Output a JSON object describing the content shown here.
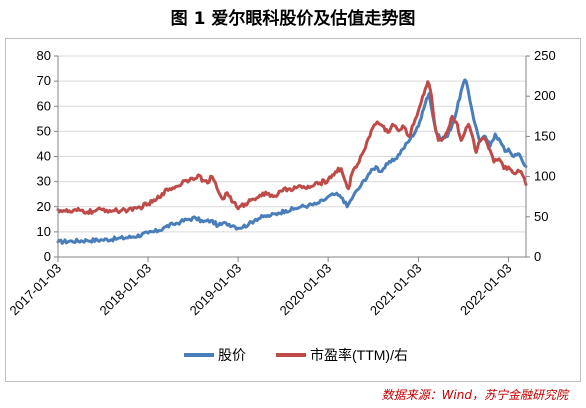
{
  "figure": {
    "title": "图 1  爱尔眼科股价及估值走势图",
    "source": "数据来源：Wind，苏宁金融研究院"
  },
  "colors": {
    "price": "#4a7ebb",
    "pe": "#be4b48",
    "axis": "#868686",
    "grid": "#d9d9d9"
  },
  "chart_data": {
    "type": "line",
    "title": "",
    "xlabel": "",
    "ylabel": "",
    "y2label": "",
    "x_ticks": [
      "2017-01-03",
      "2018-01-03",
      "2019-01-03",
      "2020-01-03",
      "2021-01-03",
      "2022-01-03"
    ],
    "x_range": [
      "2017-01-03",
      "2022-03-15"
    ],
    "y_ticks": [
      0,
      10,
      20,
      30,
      40,
      50,
      60,
      70,
      80
    ],
    "y2_ticks": [
      0,
      50,
      100,
      150,
      200,
      250
    ],
    "ylim": [
      0,
      80
    ],
    "y2lim": [
      0,
      250
    ],
    "grid": "horizontal",
    "legend_position": "bottom",
    "series": [
      {
        "name": "股价",
        "axis": "left",
        "points": [
          [
            "2017-01-03",
            6.0
          ],
          [
            "2017-03-01",
            6.3
          ],
          [
            "2017-05-01",
            6.6
          ],
          [
            "2017-07-01",
            6.8
          ],
          [
            "2017-09-01",
            7.3
          ],
          [
            "2017-11-01",
            8.0
          ],
          [
            "2018-01-03",
            9.5
          ],
          [
            "2018-02-15",
            10.5
          ],
          [
            "2018-03-15",
            12.0
          ],
          [
            "2018-04-15",
            13.0
          ],
          [
            "2018-05-15",
            14.0
          ],
          [
            "2018-06-15",
            15.0
          ],
          [
            "2018-07-15",
            15.5
          ],
          [
            "2018-08-15",
            14.0
          ],
          [
            "2018-09-15",
            14.5
          ],
          [
            "2018-10-15",
            12.5
          ],
          [
            "2018-11-15",
            13.5
          ],
          [
            "2018-12-15",
            12.5
          ],
          [
            "2019-01-03",
            11.5
          ],
          [
            "2019-02-15",
            13.0
          ],
          [
            "2019-03-15",
            15.0
          ],
          [
            "2019-04-15",
            16.0
          ],
          [
            "2019-05-15",
            16.5
          ],
          [
            "2019-06-15",
            17.5
          ],
          [
            "2019-07-15",
            18.5
          ],
          [
            "2019-08-15",
            19.0
          ],
          [
            "2019-09-15",
            20.0
          ],
          [
            "2019-10-15",
            20.5
          ],
          [
            "2019-11-15",
            21.0
          ],
          [
            "2019-12-15",
            22.5
          ],
          [
            "2020-01-03",
            24.0
          ],
          [
            "2020-02-01",
            25.0
          ],
          [
            "2020-03-01",
            23.5
          ],
          [
            "2020-03-20",
            20.0
          ],
          [
            "2020-04-15",
            24.5
          ],
          [
            "2020-05-15",
            28.5
          ],
          [
            "2020-06-15",
            33.0
          ],
          [
            "2020-07-15",
            36.0
          ],
          [
            "2020-08-01",
            34.0
          ],
          [
            "2020-09-01",
            37.0
          ],
          [
            "2020-10-01",
            39.0
          ],
          [
            "2020-11-01",
            43.0
          ],
          [
            "2020-12-01",
            47.0
          ],
          [
            "2021-01-03",
            52.0
          ],
          [
            "2021-01-20",
            58.0
          ],
          [
            "2021-02-05",
            63.0
          ],
          [
            "2021-02-15",
            65.0
          ],
          [
            "2021-03-01",
            57.0
          ],
          [
            "2021-03-15",
            50.0
          ],
          [
            "2021-04-01",
            47.0
          ],
          [
            "2021-05-01",
            48.0
          ],
          [
            "2021-06-01",
            56.0
          ],
          [
            "2021-06-25",
            66.0
          ],
          [
            "2021-07-10",
            70.5
          ],
          [
            "2021-07-20",
            68.0
          ],
          [
            "2021-08-05",
            60.0
          ],
          [
            "2021-08-20",
            53.0
          ],
          [
            "2021-09-10",
            46.0
          ],
          [
            "2021-10-01",
            48.0
          ],
          [
            "2021-10-20",
            44.0
          ],
          [
            "2021-11-10",
            49.0
          ],
          [
            "2021-12-01",
            46.0
          ],
          [
            "2021-12-20",
            42.0
          ],
          [
            "2022-01-03",
            43.0
          ],
          [
            "2022-01-25",
            40.0
          ],
          [
            "2022-02-15",
            41.0
          ],
          [
            "2022-03-01",
            38.0
          ],
          [
            "2022-03-15",
            36.0
          ]
        ]
      },
      {
        "name": "市盈率(TTM)/右",
        "axis": "right",
        "points": [
          [
            "2017-01-03",
            59
          ],
          [
            "2017-02-01",
            57
          ],
          [
            "2017-03-01",
            56
          ],
          [
            "2017-04-01",
            58
          ],
          [
            "2017-05-01",
            56
          ],
          [
            "2017-06-01",
            57
          ],
          [
            "2017-07-01",
            59
          ],
          [
            "2017-08-01",
            58
          ],
          [
            "2017-09-01",
            57
          ],
          [
            "2017-10-01",
            59
          ],
          [
            "2017-11-01",
            58
          ],
          [
            "2017-12-01",
            62
          ],
          [
            "2018-01-03",
            66
          ],
          [
            "2018-02-01",
            70
          ],
          [
            "2018-03-01",
            79
          ],
          [
            "2018-04-01",
            85
          ],
          [
            "2018-05-01",
            88
          ],
          [
            "2018-06-01",
            95
          ],
          [
            "2018-07-01",
            98
          ],
          [
            "2018-07-25",
            102
          ],
          [
            "2018-08-15",
            95
          ],
          [
            "2018-09-01",
            92
          ],
          [
            "2018-09-20",
            100
          ],
          [
            "2018-10-10",
            85
          ],
          [
            "2018-11-01",
            72
          ],
          [
            "2018-11-20",
            80
          ],
          [
            "2018-12-15",
            68
          ],
          [
            "2019-01-03",
            60
          ],
          [
            "2019-02-01",
            66
          ],
          [
            "2019-03-01",
            72
          ],
          [
            "2019-04-01",
            77
          ],
          [
            "2019-05-01",
            78
          ],
          [
            "2019-06-01",
            76
          ],
          [
            "2019-07-01",
            82
          ],
          [
            "2019-08-01",
            85
          ],
          [
            "2019-09-01",
            87
          ],
          [
            "2019-10-01",
            86
          ],
          [
            "2019-11-01",
            88
          ],
          [
            "2019-12-01",
            92
          ],
          [
            "2020-01-03",
            96
          ],
          [
            "2020-02-01",
            106
          ],
          [
            "2020-02-25",
            110
          ],
          [
            "2020-03-10",
            96
          ],
          [
            "2020-03-25",
            85
          ],
          [
            "2020-04-10",
            105
          ],
          [
            "2020-05-01",
            115
          ],
          [
            "2020-05-20",
            128
          ],
          [
            "2020-06-15",
            148
          ],
          [
            "2020-07-01",
            160
          ],
          [
            "2020-07-20",
            168
          ],
          [
            "2020-08-10",
            163
          ],
          [
            "2020-09-01",
            155
          ],
          [
            "2020-09-20",
            165
          ],
          [
            "2020-10-15",
            157
          ],
          [
            "2020-11-05",
            162
          ],
          [
            "2020-11-25",
            150
          ],
          [
            "2020-12-15",
            165
          ],
          [
            "2021-01-03",
            182
          ],
          [
            "2021-01-20",
            200
          ],
          [
            "2021-02-10",
            218
          ],
          [
            "2021-02-25",
            200
          ],
          [
            "2021-03-10",
            165
          ],
          [
            "2021-03-25",
            145
          ],
          [
            "2021-04-20",
            150
          ],
          [
            "2021-05-05",
            160
          ],
          [
            "2021-05-20",
            175
          ],
          [
            "2021-06-10",
            165
          ],
          [
            "2021-06-25",
            145
          ],
          [
            "2021-07-10",
            155
          ],
          [
            "2021-07-25",
            165
          ],
          [
            "2021-08-10",
            150
          ],
          [
            "2021-08-25",
            130
          ],
          [
            "2021-09-10",
            145
          ],
          [
            "2021-09-25",
            148
          ],
          [
            "2021-10-15",
            135
          ],
          [
            "2021-11-05",
            118
          ],
          [
            "2021-11-25",
            122
          ],
          [
            "2021-12-15",
            110
          ],
          [
            "2022-01-03",
            112
          ],
          [
            "2022-01-20",
            105
          ],
          [
            "2022-02-10",
            108
          ],
          [
            "2022-03-01",
            102
          ],
          [
            "2022-03-15",
            90
          ]
        ]
      }
    ]
  }
}
